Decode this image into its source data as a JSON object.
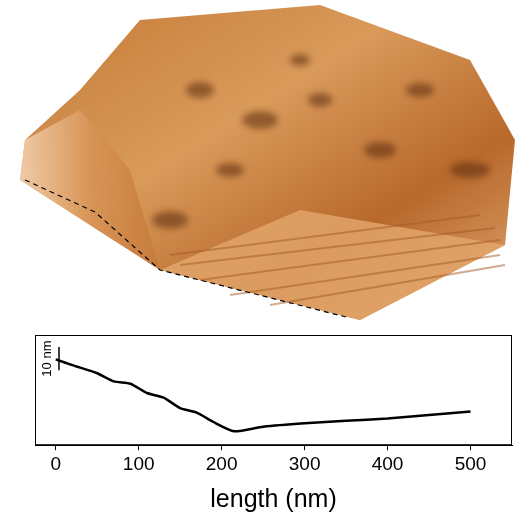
{
  "chart_data": {
    "type": "line",
    "x_label": "length (nm)",
    "x": [
      0,
      20,
      50,
      70,
      90,
      110,
      130,
      150,
      170,
      190,
      215,
      250,
      300,
      350,
      400,
      450,
      500
    ],
    "values": [
      31,
      28.5,
      25,
      21.5,
      20.5,
      16.5,
      14.5,
      10,
      8,
      4,
      0,
      2,
      3.5,
      4.5,
      5.5,
      7,
      8.5
    ],
    "color": "#000000",
    "xlim": [
      -25,
      550
    ],
    "xticks": [
      0,
      100,
      200,
      300,
      400,
      500
    ],
    "ylim": [
      -6,
      41.5
    ],
    "tick_labels": "x",
    "grid": false,
    "scale_bar": {
      "value": 10,
      "label": "10 nm"
    }
  }
}
